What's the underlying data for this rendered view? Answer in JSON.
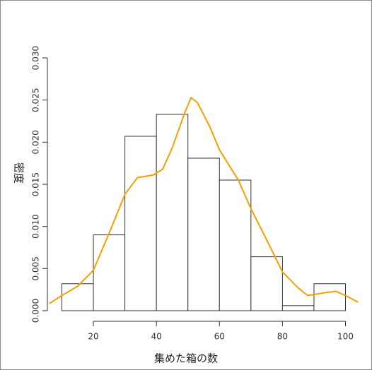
{
  "chart_data": {
    "type": "histogram",
    "x_label": "集めた箱の数",
    "y_label": "密度",
    "bins": [
      10,
      20,
      30,
      40,
      50,
      60,
      70,
      80,
      90,
      100
    ],
    "values": [
      0.0032,
      0.009,
      0.0207,
      0.0233,
      0.0181,
      0.0155,
      0.0064,
      0.0006,
      0.0032
    ],
    "bar_fill": "#ffffff",
    "bar_edge": "#333333",
    "density_color": "#f5a000",
    "density_x": [
      6,
      10,
      15,
      20,
      25,
      30,
      34,
      39,
      42,
      45,
      49,
      51,
      53,
      57,
      60,
      66,
      70,
      75,
      80,
      85,
      88,
      93,
      97,
      100,
      104
    ],
    "density_values": [
      0.00084,
      0.0018,
      0.0029,
      0.0048,
      0.0092,
      0.0138,
      0.0158,
      0.0161,
      0.0168,
      0.0193,
      0.0235,
      0.0253,
      0.0247,
      0.0218,
      0.0191,
      0.0155,
      0.0121,
      0.0084,
      0.0046,
      0.0027,
      0.0018,
      0.0021,
      0.0023,
      0.0018,
      0.001
    ],
    "xlim": [
      5.4,
      104.6
    ],
    "ylim": [
      -0.0012,
      0.0312
    ],
    "xticks": [
      20,
      40,
      60,
      80,
      100
    ],
    "yticks": [
      {
        "value": 0,
        "label": "0.000"
      },
      {
        "value": 0.005,
        "label": "0.005"
      },
      {
        "value": 0.01,
        "label": "0.010"
      },
      {
        "value": 0.015,
        "label": "0.015"
      },
      {
        "value": 0.02,
        "label": "0.020"
      },
      {
        "value": 0.025,
        "label": "0.025"
      },
      {
        "value": 0.03,
        "label": "0.030"
      }
    ]
  }
}
